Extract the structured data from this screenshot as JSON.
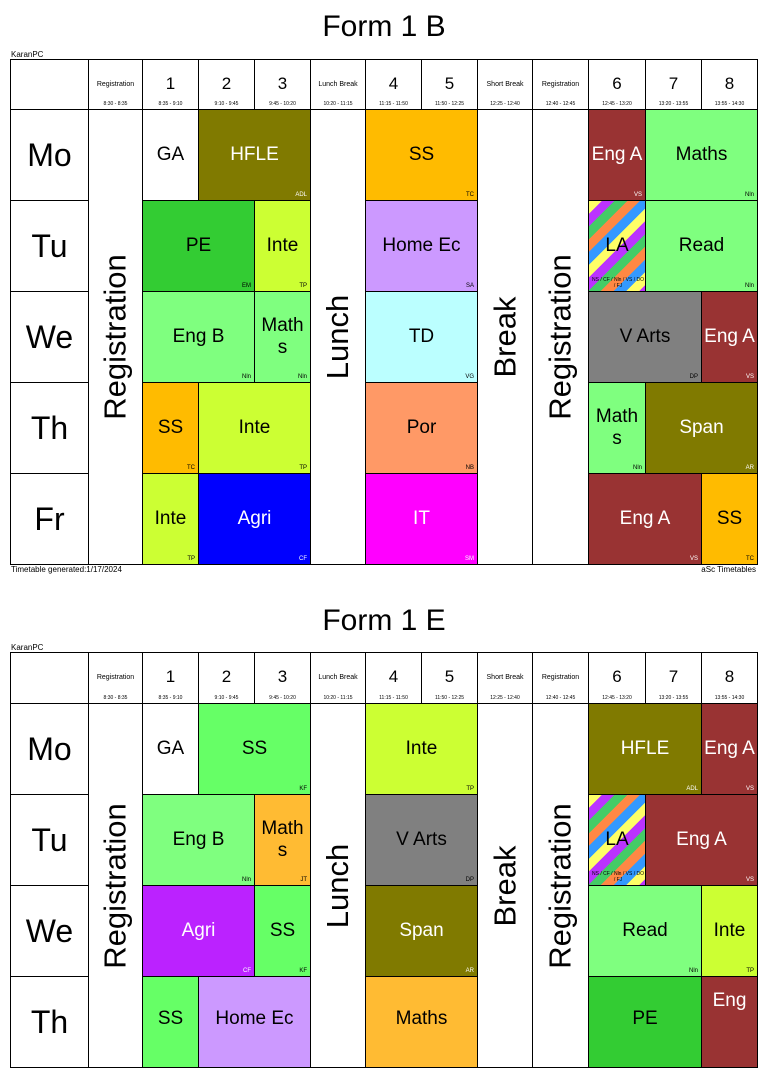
{
  "footer_left": "Timetable generated:1/17/2024",
  "footer_right": "aSc Timetables",
  "creator": "KaranPC",
  "timetables": [
    {
      "title": "Form 1 B",
      "headers": [
        {
          "label": "Registration",
          "time": "8:30 - 8:35"
        },
        {
          "num": "1",
          "time": "8:35 - 9:10"
        },
        {
          "num": "2",
          "time": "9:10 - 9:45"
        },
        {
          "num": "3",
          "time": "9:45 - 10:20"
        },
        {
          "label": "Lunch Break",
          "time": "10:20 - 11:15"
        },
        {
          "num": "4",
          "time": "11:15 - 11:50"
        },
        {
          "num": "5",
          "time": "11:50 - 12:25"
        },
        {
          "label": "Short Break",
          "time": "12:25 - 12:40"
        },
        {
          "label": "Registration",
          "time": "12:40 - 12:45"
        },
        {
          "num": "6",
          "time": "12:45 - 13:20"
        },
        {
          "num": "7",
          "time": "13:20 - 13:55"
        },
        {
          "num": "8",
          "time": "13:55 - 14:30"
        }
      ],
      "days": [
        "Mo",
        "Tu",
        "We",
        "Th",
        "Fr"
      ],
      "vertical": [
        "Registration",
        "Lunch",
        "Break",
        "Registration"
      ],
      "lessons": [
        {
          "subject": "GA",
          "teacher": "",
          "color": "#ffffff"
        },
        {
          "subject": "HFLE",
          "teacher": "ADL",
          "color": "#807a00"
        },
        {
          "subject": "SS",
          "teacher": "TC",
          "color": "#ffbb00"
        },
        {
          "subject": "Eng A",
          "teacher": "VS",
          "color": "#993333"
        },
        {
          "subject": "Maths",
          "teacher": "Nln",
          "color": "#7fff7f"
        },
        {
          "subject": "PE",
          "teacher": "EM",
          "color": "#33cc33"
        },
        {
          "subject": "Inte",
          "teacher": "TP",
          "color": "#ccff33"
        },
        {
          "subject": "Home Ec",
          "teacher": "SA",
          "color": "#cc99ff"
        },
        {
          "subject": "LA",
          "teacher": "NS / CF / Nln / VS / DO / FJ",
          "color": "stripes"
        },
        {
          "subject": "Read",
          "teacher": "Nln",
          "color": "#7fff7f"
        },
        {
          "subject": "Eng B",
          "teacher": "Nln",
          "color": "#7fff7f"
        },
        {
          "subject": "Math s",
          "teacher": "Nln",
          "color": "#7fff7f"
        },
        {
          "subject": "TD",
          "teacher": "VG",
          "color": "#bbffff"
        },
        {
          "subject": "V Arts",
          "teacher": "DP",
          "color": "#808080"
        },
        {
          "subject": "Eng A",
          "teacher": "VS",
          "color": "#993333"
        },
        {
          "subject": "SS",
          "teacher": "TC",
          "color": "#ffbb00"
        },
        {
          "subject": "Inte",
          "teacher": "TP",
          "color": "#ccff33"
        },
        {
          "subject": "Por",
          "teacher": "NB",
          "color": "#ff9966"
        },
        {
          "subject": "Math s",
          "teacher": "Nln",
          "color": "#7fff7f"
        },
        {
          "subject": "Span",
          "teacher": "AR",
          "color": "#807a00"
        },
        {
          "subject": "Inte",
          "teacher": "TP",
          "color": "#ccff33"
        },
        {
          "subject": "Agri",
          "teacher": "CF",
          "color": "#0000ff"
        },
        {
          "subject": "IT",
          "teacher": "SM",
          "color": "#ff00ff"
        },
        {
          "subject": "Eng A",
          "teacher": "VS",
          "color": "#993333"
        },
        {
          "subject": "SS",
          "teacher": "TC",
          "color": "#ffbb00"
        }
      ]
    },
    {
      "title": "Form 1 E",
      "headers": [
        {
          "label": "Registration",
          "time": "8:30 - 8:35"
        },
        {
          "num": "1",
          "time": "8:35 - 9:10"
        },
        {
          "num": "2",
          "time": "9:10 - 9:45"
        },
        {
          "num": "3",
          "time": "9:45 - 10:20"
        },
        {
          "label": "Lunch Break",
          "time": "10:20 - 11:15"
        },
        {
          "num": "4",
          "time": "11:15 - 11:50"
        },
        {
          "num": "5",
          "time": "11:50 - 12:25"
        },
        {
          "label": "Short Break",
          "time": "12:25 - 12:40"
        },
        {
          "label": "Registration",
          "time": "12:40 - 12:45"
        },
        {
          "num": "6",
          "time": "12:45 - 13:20"
        },
        {
          "num": "7",
          "time": "13:20 - 13:55"
        },
        {
          "num": "8",
          "time": "13:55 - 14:30"
        }
      ],
      "days": [
        "Mo",
        "Tu",
        "We",
        "Th"
      ],
      "vertical": [
        "Registration",
        "Lunch",
        "Break",
        "Registration"
      ],
      "lessons": [
        {
          "subject": "GA",
          "teacher": "",
          "color": "#ffffff"
        },
        {
          "subject": "SS",
          "teacher": "KF",
          "color": "#66ff66"
        },
        {
          "subject": "Inte",
          "teacher": "TP",
          "color": "#ccff33"
        },
        {
          "subject": "HFLE",
          "teacher": "ADL",
          "color": "#807a00"
        },
        {
          "subject": "Eng A",
          "teacher": "VS",
          "color": "#993333"
        },
        {
          "subject": "Eng B",
          "teacher": "Nln",
          "color": "#7fff7f"
        },
        {
          "subject": "Math s",
          "teacher": "JT",
          "color": "#ffbb33"
        },
        {
          "subject": "V Arts",
          "teacher": "DP",
          "color": "#808080"
        },
        {
          "subject": "LA",
          "teacher": "NS / CF / Nln / VS / DO / FJ",
          "color": "stripes"
        },
        {
          "subject": "Eng A",
          "teacher": "VS",
          "color": "#993333"
        },
        {
          "subject": "Agri",
          "teacher": "CF",
          "color": "#bb22ff"
        },
        {
          "subject": "SS",
          "teacher": "KF",
          "color": "#66ff66"
        },
        {
          "subject": "Span",
          "teacher": "AR",
          "color": "#807a00"
        },
        {
          "subject": "Read",
          "teacher": "Nln",
          "color": "#7fff7f"
        },
        {
          "subject": "Inte",
          "teacher": "TP",
          "color": "#ccff33"
        },
        {
          "subject": "SS",
          "teacher": "",
          "color": "#66ff66"
        },
        {
          "subject": "Home Ec",
          "teacher": "",
          "color": "#cc99ff"
        },
        {
          "subject": "Maths",
          "teacher": "",
          "color": "#ffbb33"
        },
        {
          "subject": "PE",
          "teacher": "",
          "color": "#33cc33"
        },
        {
          "subject": "Eng",
          "teacher": "",
          "color": "#993333"
        }
      ]
    }
  ]
}
